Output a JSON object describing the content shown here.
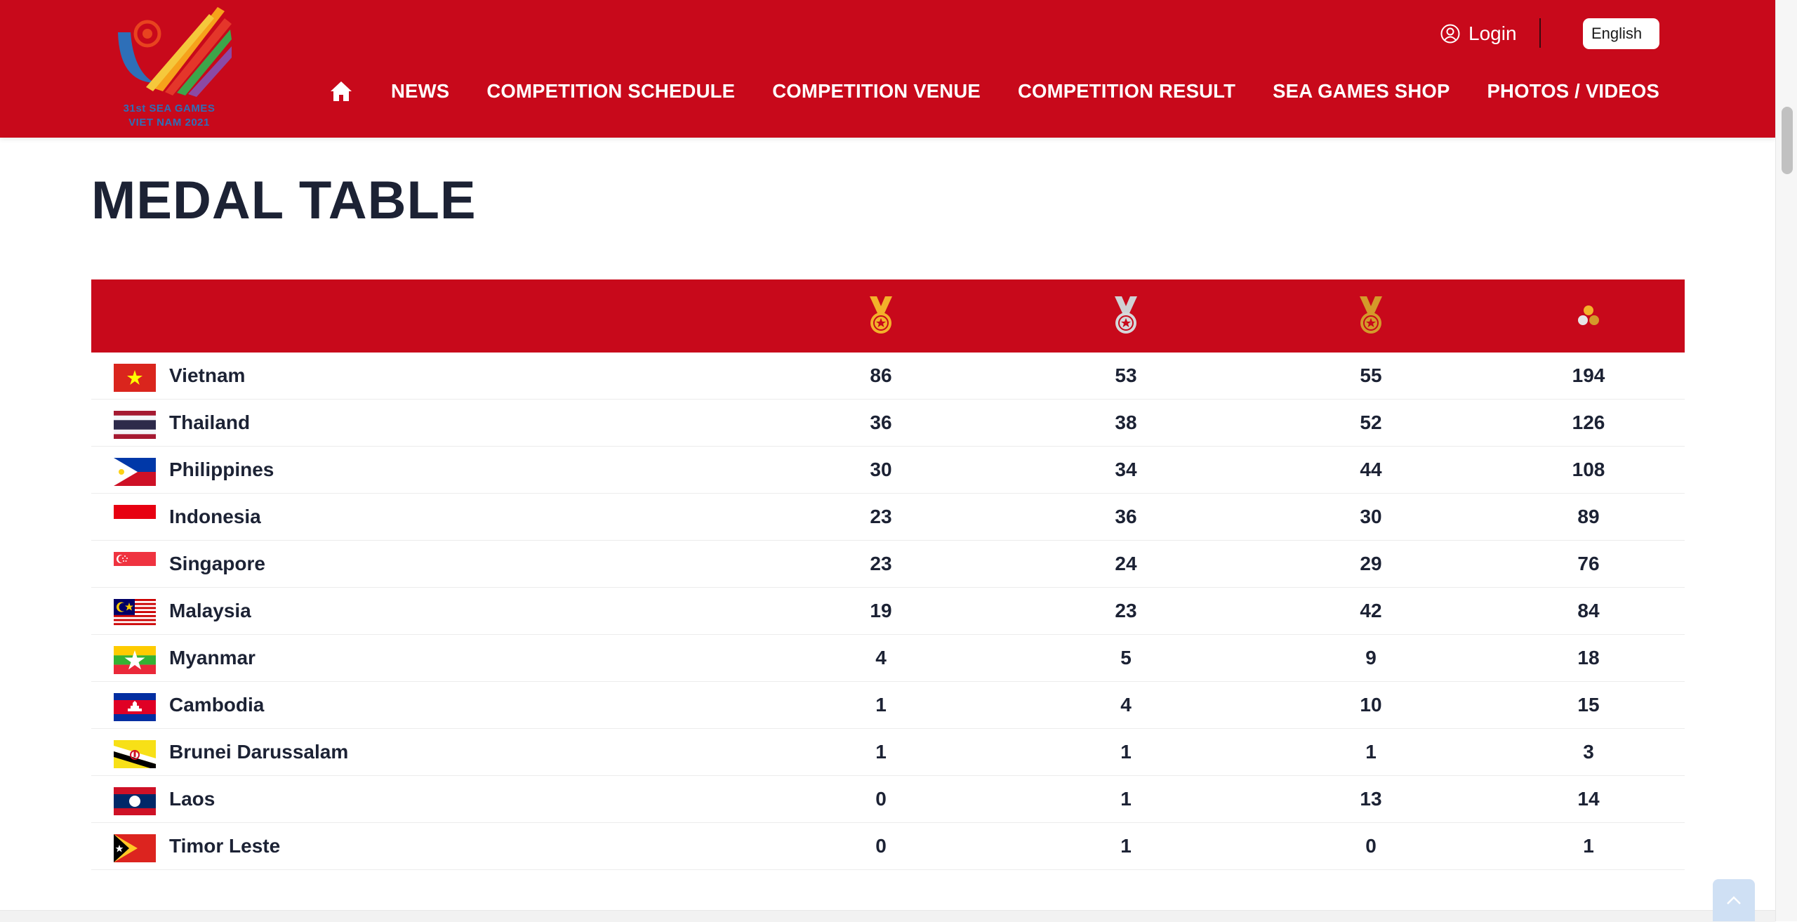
{
  "logo": {
    "line1": "31st SEA GAMES",
    "line2": "VIET NAM 2021"
  },
  "topbar": {
    "login_label": "Login",
    "language": "English"
  },
  "nav": {
    "items": [
      "NEWS",
      "COMPETITION SCHEDULE",
      "COMPETITION VENUE",
      "COMPETITION RESULT",
      "SEA GAMES SHOP",
      "PHOTOS / VIDEOS"
    ]
  },
  "page_title": "MEDAL TABLE",
  "table": {
    "header_icons": [
      "gold-medal-icon",
      "silver-medal-icon",
      "bronze-medal-icon",
      "total-medals-icon"
    ],
    "rows": [
      {
        "country": "Vietnam",
        "gold": "86",
        "silver": "53",
        "bronze": "55",
        "total": "194"
      },
      {
        "country": "Thailand",
        "gold": "36",
        "silver": "38",
        "bronze": "52",
        "total": "126"
      },
      {
        "country": "Philippines",
        "gold": "30",
        "silver": "34",
        "bronze": "44",
        "total": "108"
      },
      {
        "country": "Indonesia",
        "gold": "23",
        "silver": "36",
        "bronze": "30",
        "total": "89"
      },
      {
        "country": "Singapore",
        "gold": "23",
        "silver": "24",
        "bronze": "29",
        "total": "76"
      },
      {
        "country": "Malaysia",
        "gold": "19",
        "silver": "23",
        "bronze": "42",
        "total": "84"
      },
      {
        "country": "Myanmar",
        "gold": "4",
        "silver": "5",
        "bronze": "9",
        "total": "18"
      },
      {
        "country": "Cambodia",
        "gold": "1",
        "silver": "4",
        "bronze": "10",
        "total": "15"
      },
      {
        "country": "Brunei Darussalam",
        "gold": "1",
        "silver": "1",
        "bronze": "1",
        "total": "3"
      },
      {
        "country": "Laos",
        "gold": "0",
        "silver": "1",
        "bronze": "13",
        "total": "14"
      },
      {
        "country": "Timor Leste",
        "gold": "0",
        "silver": "1",
        "bronze": "0",
        "total": "1"
      }
    ]
  },
  "colors": {
    "brand_red": "#c8091b",
    "text_dark": "#1c2234",
    "gold": "#f3b12a",
    "silver": "#c7c9cc",
    "bronze": "#d49a2a"
  }
}
